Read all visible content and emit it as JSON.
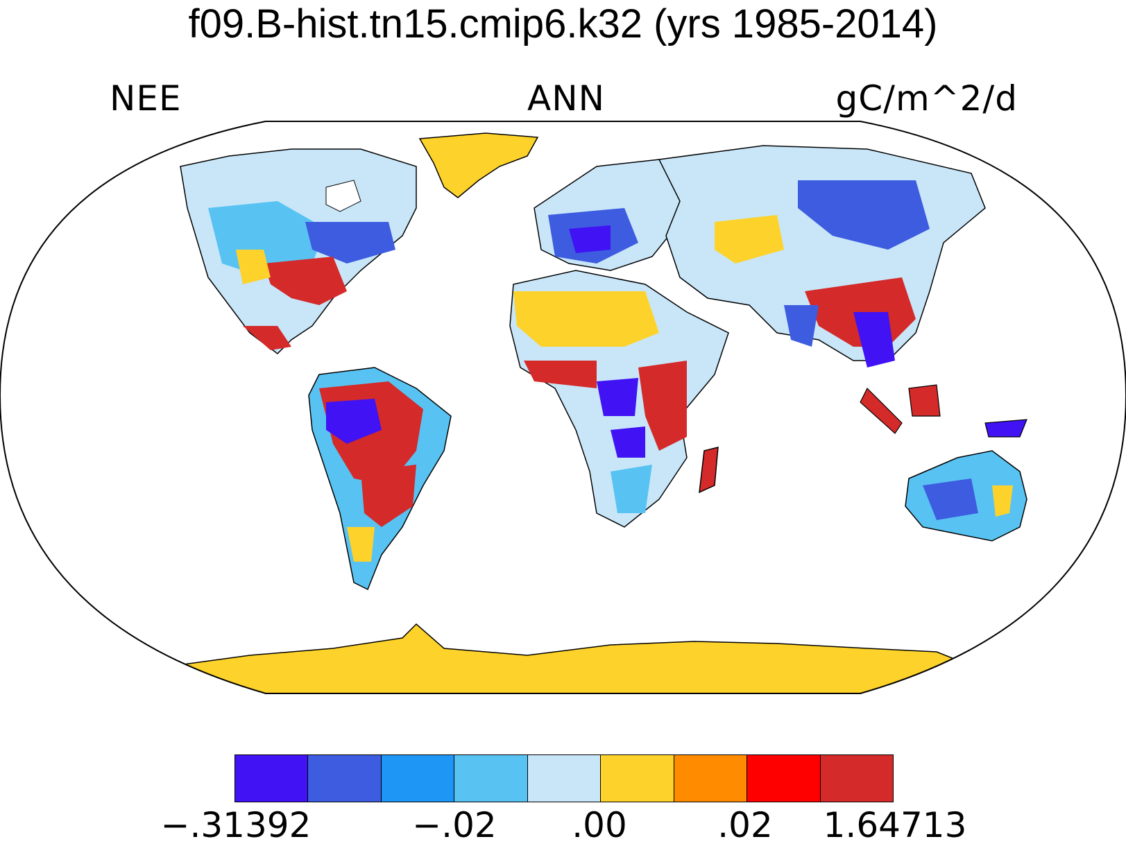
{
  "title": "f09.B-hist.tn15.cmip6.k32 (yrs 1985-2014)",
  "variable": "NEE",
  "season": "ANN",
  "units": "gC/m^2/d",
  "legend": {
    "colors": [
      "#4012f4",
      "#3d5ce0",
      "#1e96f5",
      "#58c3f2",
      "#c8e6f8",
      "#fdd22b",
      "#ff8c00",
      "#ff0000",
      "#d42a2a"
    ],
    "labels": [
      "−.31392",
      "−.02",
      ".00",
      ".02",
      "1.64713"
    ]
  },
  "map": {
    "projection": "Robinson",
    "land_ocean": {
      "ocean": "#ffffff",
      "coastline": "#000000"
    }
  }
}
